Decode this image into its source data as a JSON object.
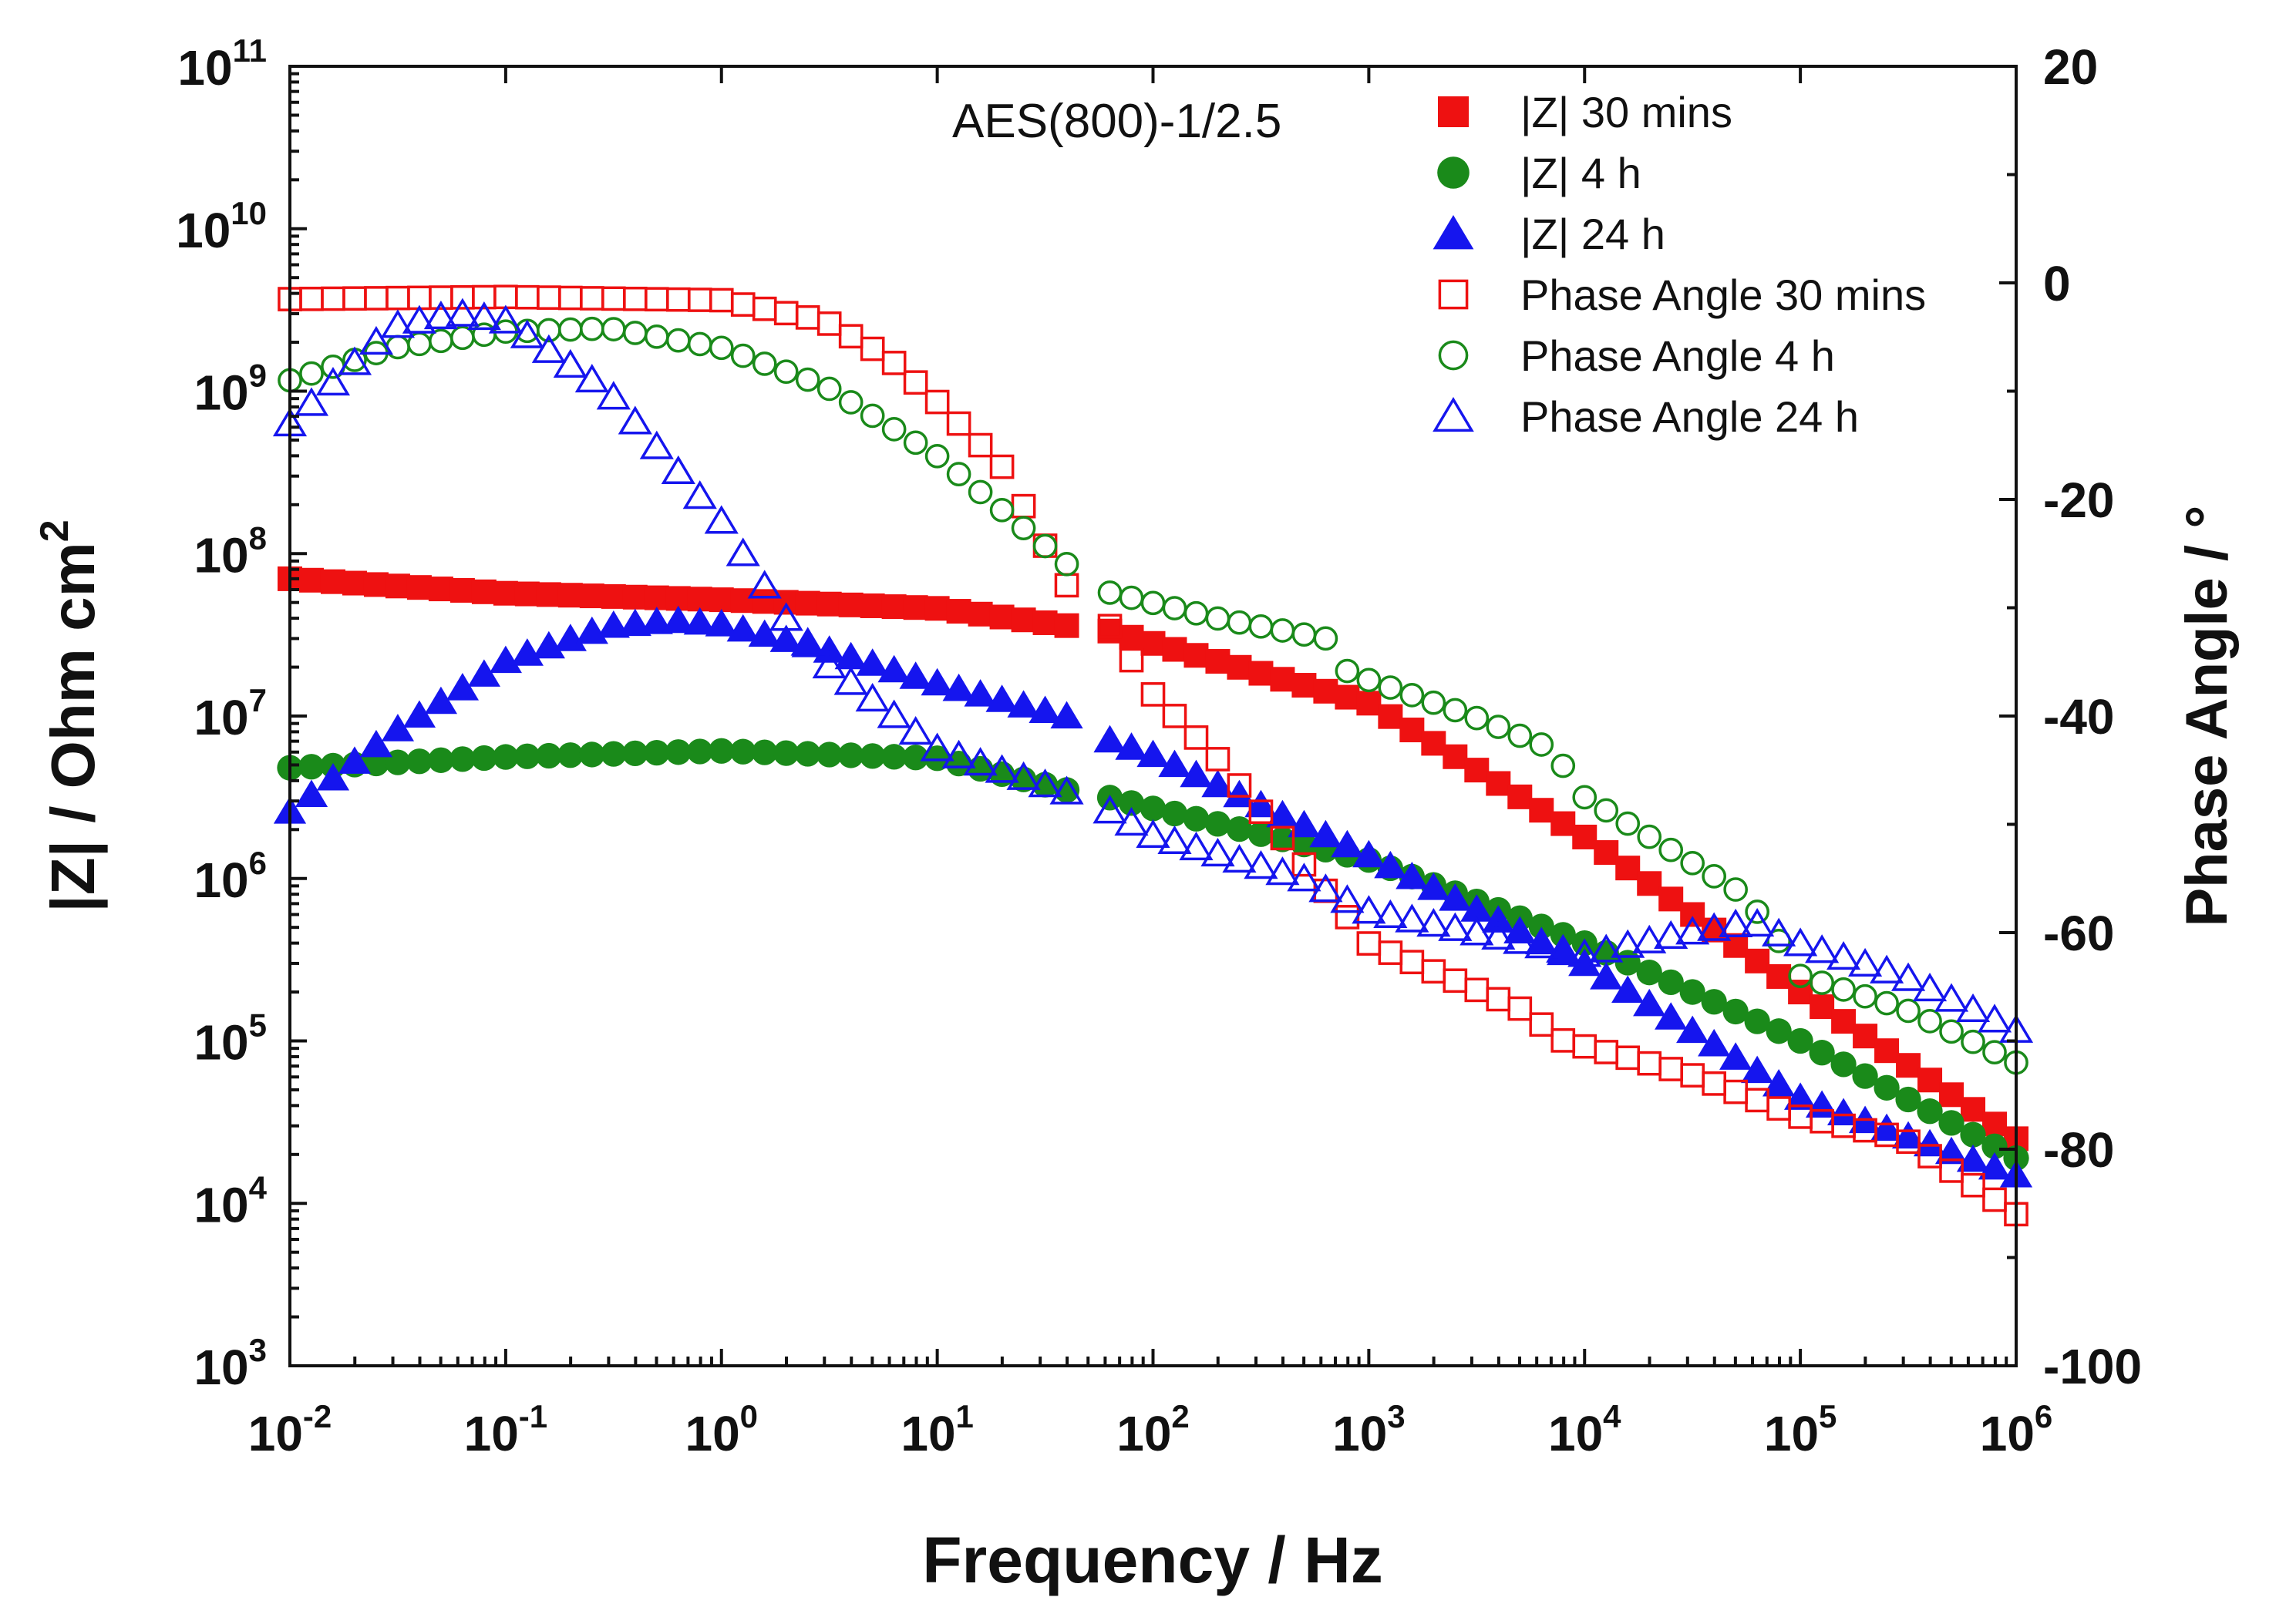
{
  "chart_data": {
    "type": "scatter",
    "annotation": "AES(800)-1/2.5",
    "xlabel": "Frequency / Hz",
    "ylabel_left_base": "|Z| / Ohm cm",
    "ylabel_left_sup": "2",
    "ylabel_right": "Phase Angle / °",
    "x_scale": "log",
    "xlim": [
      0.01,
      1000000
    ],
    "ylim_left": [
      1000,
      100000000000
    ],
    "ylim_right": [
      -100,
      20
    ],
    "x_ticks": [
      {
        "base": "10",
        "exp": "-2"
      },
      {
        "base": "10",
        "exp": "-1"
      },
      {
        "base": "10",
        "exp": "0"
      },
      {
        "base": "10",
        "exp": "1"
      },
      {
        "base": "10",
        "exp": "2"
      },
      {
        "base": "10",
        "exp": "3"
      },
      {
        "base": "10",
        "exp": "4"
      },
      {
        "base": "10",
        "exp": "5"
      },
      {
        "base": "10",
        "exp": "6"
      }
    ],
    "y_left_ticks": [
      {
        "base": "10",
        "exp": "3"
      },
      {
        "base": "10",
        "exp": "4"
      },
      {
        "base": "10",
        "exp": "5"
      },
      {
        "base": "10",
        "exp": "6"
      },
      {
        "base": "10",
        "exp": "7"
      },
      {
        "base": "10",
        "exp": "8"
      },
      {
        "base": "10",
        "exp": "9"
      },
      {
        "base": "10",
        "exp": "10"
      },
      {
        "base": "10",
        "exp": "11"
      }
    ],
    "y_right_ticks": [
      "20",
      "0",
      "-20",
      "-40",
      "-60",
      "-80",
      "-100"
    ],
    "legend_position": "top-right",
    "series": [
      {
        "name": "|Z| 30 mins",
        "axis": "left",
        "marker": "square",
        "filled": true,
        "color": "#ee1111",
        "points": [
          [
            0.01,
            70000000
          ],
          [
            0.1,
            57000000
          ],
          [
            1,
            52000000
          ],
          [
            10,
            46000000
          ],
          [
            40,
            36000000
          ],
          [
            60,
            34000000
          ],
          [
            100,
            28000000
          ],
          [
            1000,
            12000000
          ],
          [
            10000,
            1800000
          ],
          [
            100000,
            200000
          ],
          [
            1000000,
            25000
          ]
        ]
      },
      {
        "name": "|Z| 4 h",
        "axis": "left",
        "marker": "circle",
        "filled": true,
        "color": "#1a8a1a",
        "points": [
          [
            0.01,
            4800000
          ],
          [
            0.1,
            5600000
          ],
          [
            1,
            6100000
          ],
          [
            10,
            5500000
          ],
          [
            40,
            3500000
          ],
          [
            60,
            3200000
          ],
          [
            100,
            2700000
          ],
          [
            1000,
            1300000
          ],
          [
            10000,
            400000
          ],
          [
            100000,
            100000
          ],
          [
            1000000,
            19000
          ]
        ]
      },
      {
        "name": "|Z| 24 h",
        "axis": "left",
        "marker": "triangle",
        "filled": true,
        "color": "#1515ee",
        "points": [
          [
            0.01,
            2600000
          ],
          [
            0.03,
            8000000
          ],
          [
            0.1,
            22000000
          ],
          [
            0.3,
            36000000
          ],
          [
            0.6,
            39000000
          ],
          [
            1,
            37000000
          ],
          [
            3,
            26000000
          ],
          [
            10,
            16000000
          ],
          [
            40,
            10000000
          ],
          [
            60,
            7300000
          ],
          [
            100,
            5800000
          ],
          [
            1000,
            1400000
          ],
          [
            10000,
            300000
          ],
          [
            100000,
            45000
          ],
          [
            1000000,
            15000
          ]
        ]
      },
      {
        "name": "Phase Angle 30 mins",
        "axis": "right",
        "marker": "square",
        "filled": false,
        "color": "#ee1111",
        "points": [
          [
            0.01,
            -1.5
          ],
          [
            0.1,
            -1.3
          ],
          [
            1,
            -1.6
          ],
          [
            3,
            -3.5
          ],
          [
            6,
            -7
          ],
          [
            10,
            -11
          ],
          [
            20,
            -17
          ],
          [
            40,
            -28
          ],
          [
            60,
            -31
          ],
          [
            100,
            -38
          ],
          [
            200,
            -44
          ],
          [
            1000,
            -61
          ],
          [
            5000,
            -67
          ],
          [
            8000,
            -70
          ],
          [
            30000,
            -73
          ],
          [
            100000,
            -77
          ],
          [
            300000,
            -79
          ],
          [
            1000000,
            -86
          ]
        ]
      },
      {
        "name": "Phase Angle 4 h",
        "axis": "right",
        "marker": "circle",
        "filled": false,
        "color": "#1a8a1a",
        "points": [
          [
            0.01,
            -9
          ],
          [
            0.03,
            -6
          ],
          [
            0.1,
            -4.5
          ],
          [
            0.3,
            -4.2
          ],
          [
            1,
            -6
          ],
          [
            3,
            -9.5
          ],
          [
            10,
            -16
          ],
          [
            40,
            -26
          ],
          [
            60,
            -28.5
          ],
          [
            200,
            -31
          ],
          [
            700,
            -33
          ],
          [
            800,
            -36
          ],
          [
            3000,
            -40
          ],
          [
            7000,
            -43
          ],
          [
            10000,
            -47.5
          ],
          [
            50000,
            -56
          ],
          [
            70000,
            -59
          ],
          [
            100000,
            -64
          ],
          [
            300000,
            -67
          ],
          [
            1000000,
            -72
          ]
        ]
      },
      {
        "name": "Phase Angle 24 h",
        "axis": "right",
        "marker": "triangle",
        "filled": false,
        "color": "#1515ee",
        "points": [
          [
            0.01,
            -13
          ],
          [
            0.03,
            -4
          ],
          [
            0.06,
            -2.8
          ],
          [
            0.1,
            -3.5
          ],
          [
            0.3,
            -10
          ],
          [
            1,
            -22
          ],
          [
            2,
            -31
          ],
          [
            3,
            -35
          ],
          [
            10,
            -43
          ],
          [
            40,
            -47
          ],
          [
            60,
            -48.5
          ],
          [
            100,
            -51
          ],
          [
            500,
            -55
          ],
          [
            1000,
            -58
          ],
          [
            10000,
            -62
          ],
          [
            30000,
            -60
          ],
          [
            60000,
            -59
          ],
          [
            100000,
            -61
          ],
          [
            300000,
            -64
          ],
          [
            1000000,
            -69
          ]
        ]
      }
    ]
  }
}
